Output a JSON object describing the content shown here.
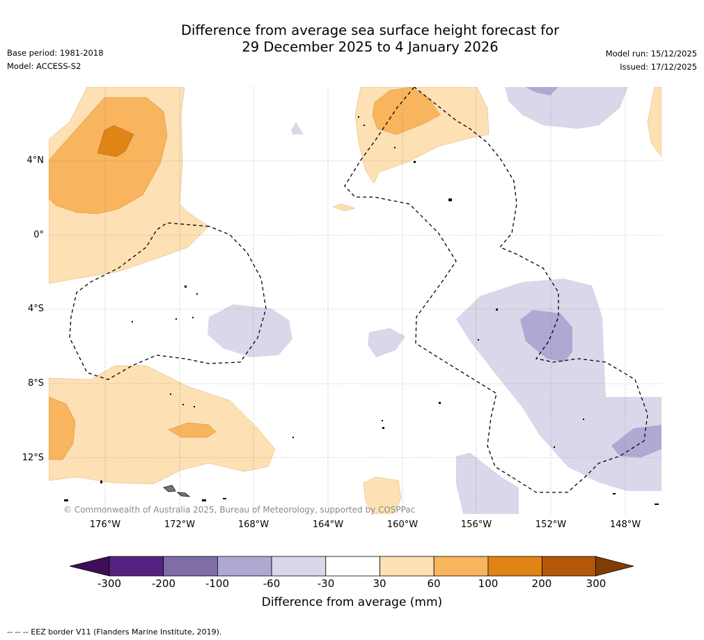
{
  "header": {
    "title_line1": "Difference from average sea surface height forecast for",
    "title_line2": "29 December 2025 to 4 January 2026",
    "base_period": "Base period: 1981-2018",
    "model": "Model: ACCESS-S2",
    "model_run": "Model run: 15/12/2025",
    "issued": "Issued: 17/12/2025"
  },
  "map": {
    "latitude_labels": [
      "4°N",
      "0°",
      "4°S",
      "8°S",
      "12°S"
    ],
    "longitude_labels": [
      "176°W",
      "172°W",
      "168°W",
      "164°W",
      "160°W",
      "156°W",
      "152°W",
      "148°W"
    ],
    "copyright": "© Commonwealth of Australia 2025, Bureau of Meteorology, supported by COSPPac"
  },
  "colorbar": {
    "tick_labels": [
      "-300",
      "-200",
      "-100",
      "-60",
      "-30",
      "30",
      "60",
      "100",
      "200",
      "300"
    ],
    "colors": [
      "#3d0f57",
      "#55237f",
      "#7f6da8",
      "#b0a8d2",
      "#d8d8ea",
      "#ffffff",
      "#fde0b4",
      "#f9b45e",
      "#e08415",
      "#b35807",
      "#7e3d05"
    ],
    "label": "Difference from average (mm)"
  },
  "footer": {
    "eez_note": "--  --  -- EEZ border V11 (Flanders Marine Institute, 2019)."
  }
}
